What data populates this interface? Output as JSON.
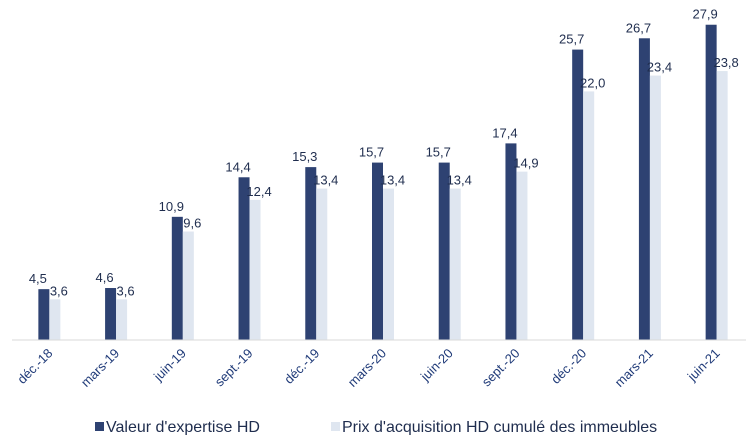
{
  "colors": {
    "series_dark": "#2e4272",
    "series_light": "#dfe6f0",
    "axis": "#d9d9d9",
    "tick_text": "#1f3a78",
    "label_text": "#1f2d4e"
  },
  "chart_data": {
    "type": "bar",
    "categories": [
      "déc.-18",
      "mars-19",
      "juin-19",
      "sept.-19",
      "déc.-19",
      "mars-20",
      "juin-20",
      "sept.-20",
      "déc.-20",
      "mars-21",
      "juin-21"
    ],
    "series": [
      {
        "name": "Valeur d'expertise HD",
        "values": [
          4.5,
          4.6,
          10.9,
          14.4,
          15.3,
          15.7,
          15.7,
          17.4,
          25.7,
          26.7,
          27.9
        ],
        "labels": [
          "4,5",
          "4,6",
          "10,9",
          "14,4",
          "15,3",
          "15,7",
          "15,7",
          "17,4",
          "25,7",
          "26,7",
          "27,9"
        ]
      },
      {
        "name": "Prix d'acquisition HD cumulé des immeubles",
        "values": [
          3.6,
          3.6,
          9.6,
          12.4,
          13.4,
          13.4,
          13.4,
          14.9,
          22.0,
          23.4,
          23.8
        ],
        "labels": [
          "3,6",
          "3,6",
          "9,6",
          "12,4",
          "13,4",
          "13,4",
          "13,4",
          "14,9",
          "22,0",
          "23,4",
          "23,8"
        ]
      }
    ],
    "ylim": [
      0,
      30
    ],
    "grid": false,
    "legend_position": "bottom"
  }
}
